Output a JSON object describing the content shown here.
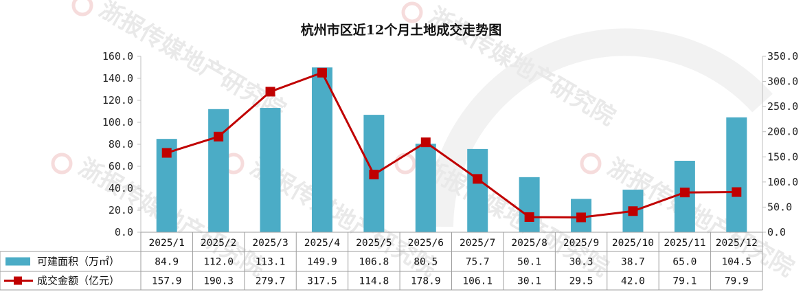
{
  "chart_data": {
    "type": "bar",
    "title": "杭州市区近12个月土地成交走势图",
    "categories": [
      "2025/1",
      "2025/2",
      "2025/3",
      "2025/4",
      "2025/5",
      "2025/6",
      "2025/7",
      "2025/8",
      "2025/9",
      "2025/10",
      "2025/11",
      "2025/12"
    ],
    "series": [
      {
        "name": "可建面积（万㎡）",
        "type": "bar",
        "axis": "left",
        "color": "#4bacc6",
        "values": [
          84.9,
          112.0,
          113.1,
          149.9,
          106.8,
          80.5,
          75.7,
          50.1,
          30.3,
          38.7,
          65.0,
          104.5
        ]
      },
      {
        "name": "成交金额（亿元）",
        "type": "line",
        "axis": "right",
        "color": "#c00000",
        "values": [
          157.9,
          190.3,
          279.7,
          317.5,
          114.8,
          178.9,
          106.1,
          30.1,
          29.5,
          42.0,
          79.1,
          79.9
        ]
      }
    ],
    "y_left": {
      "ylim": [
        0,
        160
      ],
      "ticks": [
        "0.0",
        "20.0",
        "40.0",
        "60.0",
        "80.0",
        "100.0",
        "120.0",
        "140.0",
        "160.0"
      ]
    },
    "y_right": {
      "ylim": [
        0,
        350
      ],
      "ticks": [
        "0.0",
        "50.0",
        "100.0",
        "150.0",
        "200.0",
        "250.0",
        "300.0",
        "350.0"
      ]
    },
    "table": {
      "rows": [
        [
          "84.9",
          "112.0",
          "113.1",
          "149.9",
          "106.8",
          "80.5",
          "75.7",
          "50.1",
          "30.3",
          "38.7",
          "65.0",
          "104.5"
        ],
        [
          "157.9",
          "190.3",
          "279.7",
          "317.5",
          "114.8",
          "178.9",
          "106.1",
          "30.1",
          "29.5",
          "42.0",
          "79.1",
          "79.9"
        ]
      ]
    },
    "grid": false,
    "legend": "data-table"
  },
  "watermark": {
    "text": "浙报传媒地产研究院"
  }
}
